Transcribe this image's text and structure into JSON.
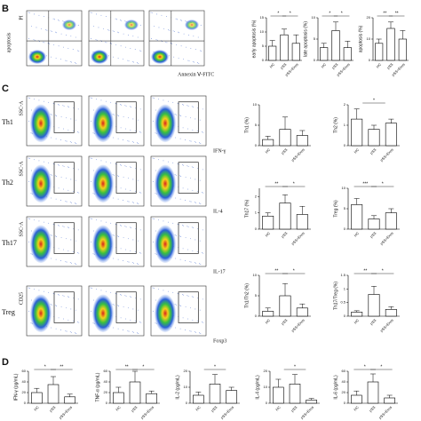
{
  "panels": {
    "B": "B",
    "C": "C",
    "D": "D"
  },
  "flow": {
    "B": {
      "y_label": "apoptosis",
      "y_axis": "PI",
      "x_axis": "Annexin Ⅴ-FITC"
    },
    "rows": [
      {
        "label": "Th1",
        "y_axis": "SSC-A",
        "x_axis": "IFN-γ"
      },
      {
        "label": "Th2",
        "y_axis": "SSC-A",
        "x_axis": "IL-4"
      },
      {
        "label": "Th17",
        "y_axis": "SSC-A",
        "x_axis": "IL-17"
      },
      {
        "label": "Treg",
        "y_axis": "CD25",
        "x_axis": "Foxp3"
      }
    ]
  },
  "chart_data": [
    {
      "type": "bar",
      "ylabel": "early apoptosis (%)",
      "categories": [
        "HC",
        "pSS",
        "pSS+Exos"
      ],
      "values": [
        5,
        9,
        6
      ],
      "errors": [
        2,
        2,
        3
      ],
      "color": "#ffffff",
      "ylim": [
        0,
        15
      ],
      "yticks": [
        0,
        5,
        10,
        15
      ],
      "sig": [
        "*",
        "*"
      ]
    },
    {
      "type": "bar",
      "ylabel": "late apoptosis (%)",
      "categories": [
        "HC",
        "pSS",
        "pSS+Exos"
      ],
      "values": [
        3,
        7,
        3
      ],
      "errors": [
        1,
        2,
        1.5
      ],
      "color": "#ffffff",
      "ylim": [
        0,
        10
      ],
      "yticks": [
        0,
        5,
        10
      ],
      "sig": [
        "*",
        "*"
      ]
    },
    {
      "type": "bar",
      "ylabel": "apoptosis (%)",
      "categories": [
        "HC",
        "pSS",
        "pSS+Exos"
      ],
      "values": [
        8,
        15,
        10
      ],
      "errors": [
        2,
        3,
        4
      ],
      "color": "#ffffff",
      "ylim": [
        0,
        20
      ],
      "yticks": [
        0,
        10,
        20
      ],
      "sig": [
        "**",
        "**"
      ]
    },
    {
      "type": "bar",
      "ylabel": "Th1 (%)",
      "categories": [
        "HC",
        "pSS",
        "pSS+Exos"
      ],
      "values": [
        1.5,
        4,
        2.5
      ],
      "errors": [
        0.8,
        3,
        1.2
      ],
      "color": "#ffffff",
      "ylim": [
        0,
        10
      ],
      "yticks": [
        0,
        5,
        10
      ],
      "sig": []
    },
    {
      "type": "bar",
      "ylabel": "Th2 (%)",
      "categories": [
        "HC",
        "pSS",
        "pSS+Exos"
      ],
      "values": [
        1.3,
        0.8,
        1.1
      ],
      "errors": [
        0.5,
        0.2,
        0.2
      ],
      "color": "#ffffff",
      "ylim": [
        0,
        2
      ],
      "yticks": [
        0,
        1,
        2
      ],
      "sig": [
        "*"
      ]
    },
    {
      "type": "bar",
      "ylabel": "Th17 (%)",
      "categories": [
        "HC",
        "pSS",
        "pSS+Exos"
      ],
      "values": [
        0.8,
        1.6,
        0.9
      ],
      "errors": [
        0.2,
        0.5,
        0.5
      ],
      "color": "#ffffff",
      "ylim": [
        0,
        2.5
      ],
      "yticks": [
        0,
        1,
        2
      ],
      "sig": [
        "**",
        "*"
      ]
    },
    {
      "type": "bar",
      "ylabel": "Treg (%)",
      "categories": [
        "HC",
        "pSS",
        "pSS+Exos"
      ],
      "values": [
        6,
        2.5,
        4
      ],
      "errors": [
        1.5,
        0.8,
        1
      ],
      "color": "#ffffff",
      "ylim": [
        0,
        10
      ],
      "yticks": [
        0,
        5,
        10
      ],
      "sig": [
        "***",
        "*"
      ]
    },
    {
      "type": "bar",
      "ylabel": "Th1/Th2 (%)",
      "categories": [
        "HC",
        "pSS",
        "pSS+Exos"
      ],
      "values": [
        1.2,
        5,
        2
      ],
      "errors": [
        0.8,
        3,
        1
      ],
      "color": "#ffffff",
      "ylim": [
        0,
        10
      ],
      "yticks": [
        0,
        5,
        10
      ],
      "sig": [
        "**",
        "*"
      ]
    },
    {
      "type": "bar",
      "ylabel": "Th17/Treg (%)",
      "categories": [
        "HC",
        "pSS",
        "pSS+Exos"
      ],
      "values": [
        0.15,
        0.8,
        0.25
      ],
      "errors": [
        0.05,
        0.3,
        0.1
      ],
      "color": "#ffffff",
      "ylim": [
        0,
        1.5
      ],
      "yticks": [
        0,
        0.5,
        1,
        1.5
      ],
      "sig": [
        "**",
        "*"
      ]
    },
    {
      "type": "bar",
      "ylabel": "IFN-γ (pg/mL)",
      "categories": [
        "HC",
        "pSS",
        "pSS+Exos"
      ],
      "values": [
        20,
        35,
        12
      ],
      "errors": [
        8,
        15,
        5
      ],
      "color": "#ffffff",
      "ylim": [
        0,
        60
      ],
      "yticks": [
        0,
        20,
        40,
        60
      ],
      "sig": [
        "*",
        "**"
      ]
    },
    {
      "type": "bar",
      "ylabel": "TNF-α (pg/mL)",
      "categories": [
        "HC",
        "pSS",
        "pSS+Exos"
      ],
      "values": [
        20,
        40,
        18
      ],
      "errors": [
        10,
        20,
        5
      ],
      "color": "#ffffff",
      "ylim": [
        0,
        60
      ],
      "yticks": [
        0,
        20,
        40,
        60
      ],
      "sig": [
        "**",
        "*"
      ]
    },
    {
      "type": "bar",
      "ylabel": "IL-2 (pg/mL)",
      "categories": [
        "HC",
        "pSS",
        "pSS+Exos"
      ],
      "values": [
        5,
        12,
        8
      ],
      "errors": [
        2,
        6,
        2
      ],
      "color": "#ffffff",
      "ylim": [
        0,
        20
      ],
      "yticks": [
        0,
        10,
        20
      ],
      "sig": [
        "*"
      ]
    },
    {
      "type": "bar",
      "ylabel": "IL-4 (pg/mL)",
      "categories": [
        "HC",
        "pSS",
        "pSS+Exos"
      ],
      "values": [
        10,
        12,
        2
      ],
      "errors": [
        5,
        6,
        1
      ],
      "color": "#ffffff",
      "ylim": [
        0,
        20
      ],
      "yticks": [
        0,
        10,
        20
      ],
      "sig": [
        "*"
      ]
    },
    {
      "type": "bar",
      "ylabel": "IL-6 (pg/mL)",
      "categories": [
        "HC",
        "pSS",
        "pSS+Exos"
      ],
      "values": [
        15,
        40,
        10
      ],
      "errors": [
        8,
        15,
        5
      ],
      "color": "#ffffff",
      "ylim": [
        0,
        60
      ],
      "yticks": [
        0,
        20,
        40,
        60
      ],
      "sig": [
        "*",
        "*"
      ]
    }
  ]
}
